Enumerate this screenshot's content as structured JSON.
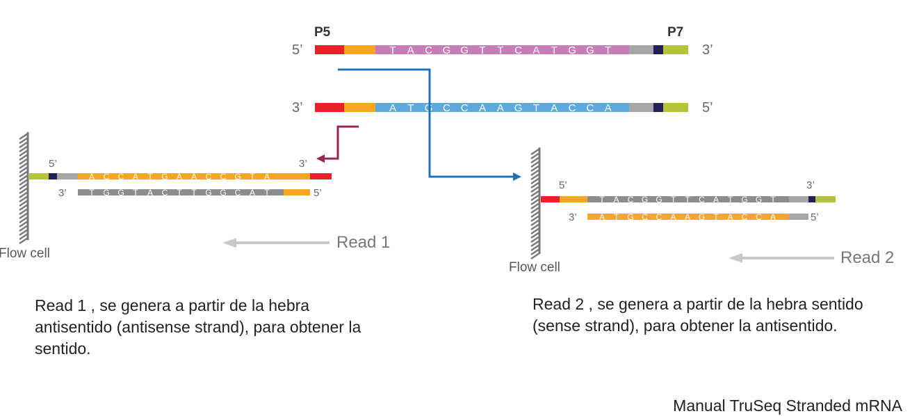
{
  "colors": {
    "p5": "#e8202a",
    "index_orange": "#f5a623",
    "adapter_grey": "#a6a6a6",
    "adapter_navy": "#22215a",
    "p7_green": "#b5c33a",
    "sense_insert": "#c87dbb",
    "antisense_insert": "#5da9de",
    "read_grey": "#8c8c8c",
    "read1_arrow": "#9b2457",
    "read2_arrow": "#1f72b8",
    "flowcell": "#777777"
  },
  "top": {
    "p5_label": "P5",
    "p7_label": "P7",
    "strand1": {
      "left_end": "5’",
      "right_end": "3’",
      "sequence": [
        "T",
        "A",
        "C",
        "G",
        "G",
        "T",
        "T",
        "C",
        "A",
        "T",
        "G",
        "G",
        "T"
      ]
    },
    "strand2": {
      "left_end": "3’",
      "right_end": "5’",
      "sequence": [
        "A",
        "T",
        "G",
        "C",
        "C",
        "A",
        "A",
        "G",
        "T",
        "A",
        "C",
        "C",
        "A"
      ]
    }
  },
  "left_panel": {
    "upper": {
      "left_end": "5’",
      "right_end": "3’",
      "sequence": [
        "A",
        "C",
        "C",
        "A",
        "T",
        "G",
        "A",
        "A",
        "C",
        "C",
        "G",
        "T",
        "A"
      ]
    },
    "lower": {
      "left_end": "3’",
      "right_end": "5’",
      "sequence": [
        "T",
        "G",
        "G",
        "T",
        "A",
        "C",
        "T",
        "T",
        "G",
        "G",
        "C",
        "A",
        "T"
      ]
    },
    "flow_cell_label": "Flow cell",
    "read_label": "Read 1",
    "description": "Read 1 , se genera a partir de la hebra antisentido (antisense strand), para obtener la sentido."
  },
  "right_panel": {
    "upper": {
      "left_end": "5’",
      "right_end": "3’",
      "sequence": [
        "T",
        "A",
        "C",
        "G",
        "G",
        "T",
        "T",
        "C",
        "A",
        "T",
        "G",
        "G",
        "T"
      ]
    },
    "lower": {
      "left_end": "3’",
      "right_end": "5’",
      "sequence": [
        "A",
        "T",
        "G",
        "C",
        "C",
        "A",
        "A",
        "G",
        "T",
        "A",
        "C",
        "C",
        "A"
      ]
    },
    "flow_cell_label": "Flow cell",
    "read_label": "Read 2",
    "description": "Read 2 , se genera a partir de la hebra sentido (sense strand), para obtener la antisentido."
  },
  "credit": "Manual TruSeq Stranded mRNA"
}
